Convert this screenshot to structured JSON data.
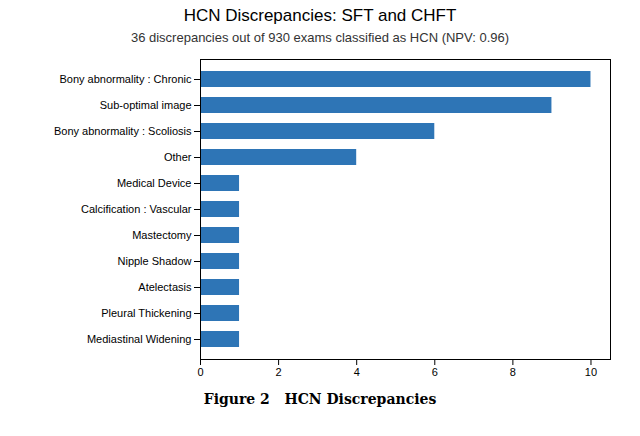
{
  "chart_data": {
    "type": "bar",
    "orientation": "horizontal",
    "title": "HCN Discrepancies: SFT and CHFT",
    "subtitle": "36 discrepancies out of 930 exams classified as HCN (NPV: 0.96)",
    "caption": "Figure 2   HCN Discrepancies",
    "categories": [
      "Mediastinal Widening",
      "Pleural Thickening",
      "Atelectasis",
      "Nipple Shadow",
      "Mastectomy",
      "Calcification : Vascular",
      "Medical Device",
      "Other",
      "Bony abnormality : Scoliosis",
      "Sub-optimal image",
      "Bony abnormality : Chronic"
    ],
    "values": [
      1,
      1,
      1,
      1,
      1,
      1,
      1,
      4,
      6,
      9,
      10
    ],
    "color": "#2e75b6",
    "xlim": [
      0,
      10.5
    ],
    "xticks": [
      0,
      2,
      4,
      6,
      8,
      10
    ],
    "grid": false
  }
}
